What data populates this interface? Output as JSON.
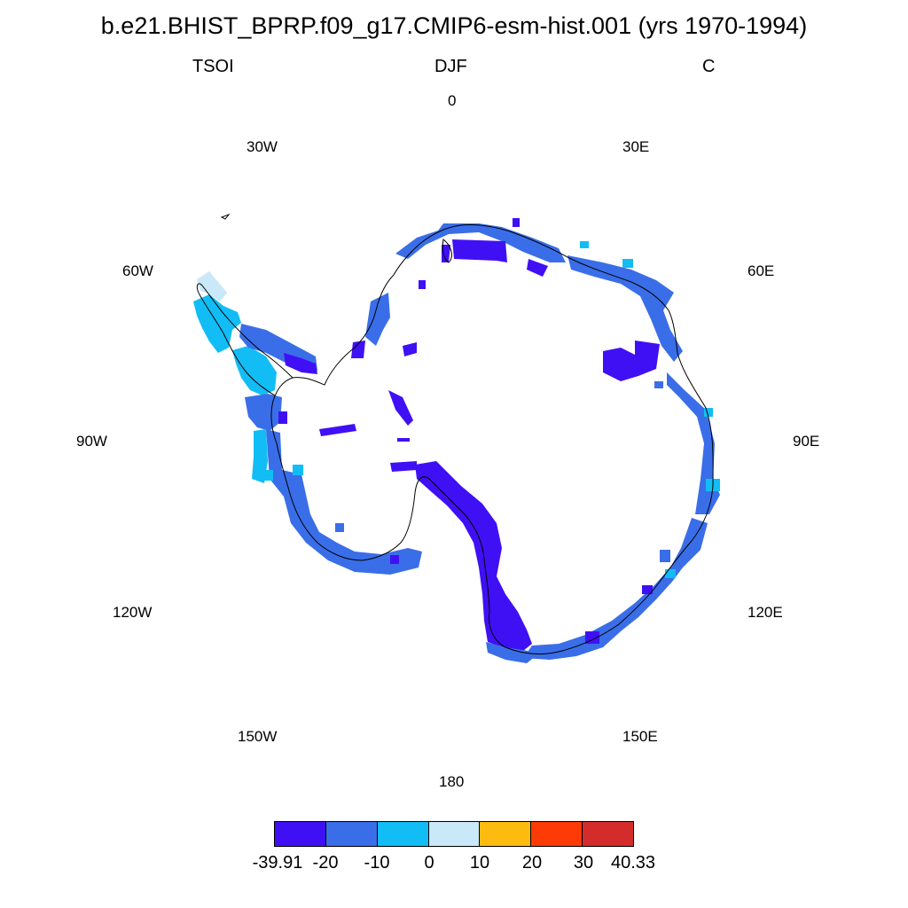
{
  "title": "b.e21.BHIST_BPRP.f09_g17.CMIP6-esm-hist.001 (yrs 1970-1994)",
  "subtitle": {
    "left": "TSOI",
    "center": "DJF",
    "right": "C"
  },
  "longitude_labels": {
    "lon_0": "0",
    "lon_30e": "30E",
    "lon_60e": "60E",
    "lon_90e": "90E",
    "lon_120e": "120E",
    "lon_150e": "150E",
    "lon_180": "180",
    "lon_150w": "150W",
    "lon_120w": "120W",
    "lon_90w": "90W",
    "lon_60w": "60W",
    "lon_30w": "30W"
  },
  "colorbar": {
    "colors": [
      "#4010f5",
      "#3a6ee8",
      "#12bdf5",
      "#c9e8f8",
      "#fdbb10",
      "#fe3a06",
      "#d42b2b"
    ],
    "labels": [
      "-39.91",
      "-20",
      "-10",
      "0",
      "10",
      "20",
      "30",
      "40.33"
    ]
  },
  "field_colors": {
    "lt_minus20": "#4010f5",
    "minus20_minus10": "#3a6ee8",
    "minus10_0": "#12bdf5",
    "zero_10": "#c9e8f8",
    "coastline": "#000000"
  }
}
